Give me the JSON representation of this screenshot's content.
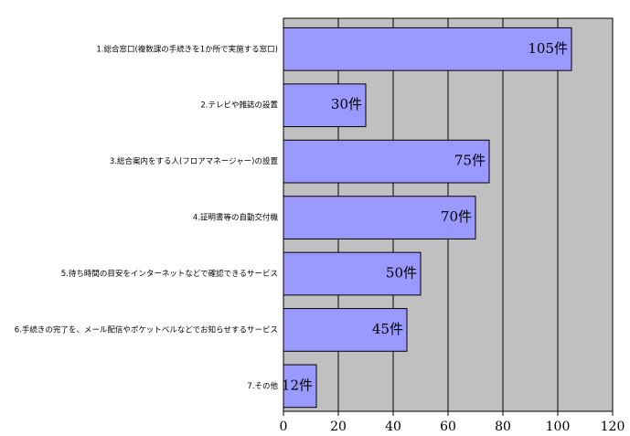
{
  "chart_data": {
    "type": "bar",
    "orientation": "horizontal",
    "categories": [
      "1.総合窓口(複数課の手続きを1か所で実施する窓口)",
      "2.テレビや雑誌の設置",
      "3.総合案内をする人(フロアマネージャー)の設置",
      "4.証明書等の自動交付機",
      "5.待ち時間の目安をインターネットなどで確認できるサービス",
      "6.手続きの完了を、メール配信やポケットベルなどでお知らせするサービス",
      "7.その他"
    ],
    "values": [
      105,
      30,
      75,
      70,
      50,
      45,
      12
    ],
    "value_labels": [
      "105件",
      "30件",
      "75件",
      "70件",
      "50件",
      "45件",
      "12件"
    ],
    "color": "#9999ff",
    "xlim": [
      0,
      120
    ],
    "xticks": [
      0,
      20,
      40,
      60,
      80,
      100,
      120
    ],
    "grid": true
  }
}
